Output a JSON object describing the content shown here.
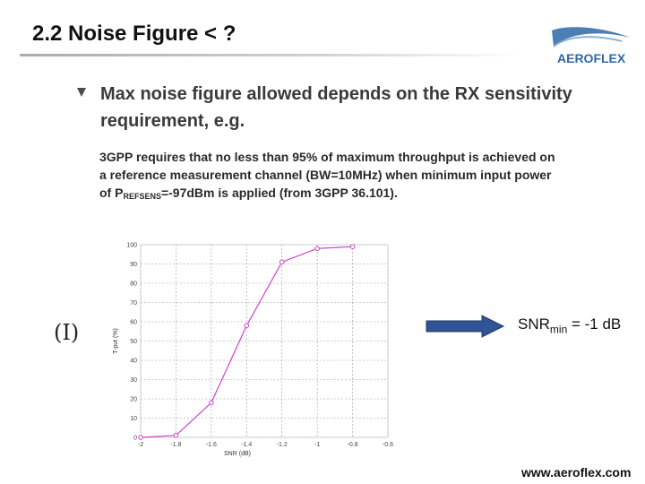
{
  "title": "2.2 Noise Figure < ?",
  "logo": {
    "text": "AEROFLEX",
    "icon": "aeroflex-logo-icon",
    "color": "#2d6aa6"
  },
  "bullet": {
    "icon": "triangle-bullet-icon",
    "text": "Max noise figure allowed depends on the RX sensitivity requirement, e.g."
  },
  "body": {
    "line_before": "3GPP requires that no less than 95% of maximum throughput is achieved on a reference measurement channel (BW=10MHz) when minimum input power of P",
    "subscript": "REFSENS",
    "line_after": "=-97dBm is applied (from 3GPP 36.101)."
  },
  "equation_label": "(I)",
  "arrow": {
    "icon": "right-arrow-icon",
    "color": "#2f5597"
  },
  "result": {
    "prefix": "SNR",
    "subscript": "min",
    "suffix": " = -1 dB"
  },
  "footer": "www.aeroflex.com",
  "chart_data": {
    "type": "line",
    "xlabel": "SNR (dB)",
    "ylabel": "T-put (%)",
    "x_ticks": [
      "-2",
      "-1.8",
      "-1.6",
      "-1.4",
      "-1.2",
      "-1",
      "-0.8",
      "-0.6"
    ],
    "y_ticks": [
      "0",
      "10",
      "20",
      "30",
      "40",
      "50",
      "60",
      "70",
      "80",
      "90",
      "100"
    ],
    "xlim": [
      -2,
      -0.6
    ],
    "ylim": [
      0,
      100
    ],
    "grid": true,
    "color": "#cc44cc",
    "x": [
      -2,
      -1.8,
      -1.6,
      -1.4,
      -1.2,
      -1,
      -0.8
    ],
    "values": [
      0,
      1,
      18,
      58,
      91,
      98,
      99
    ]
  }
}
